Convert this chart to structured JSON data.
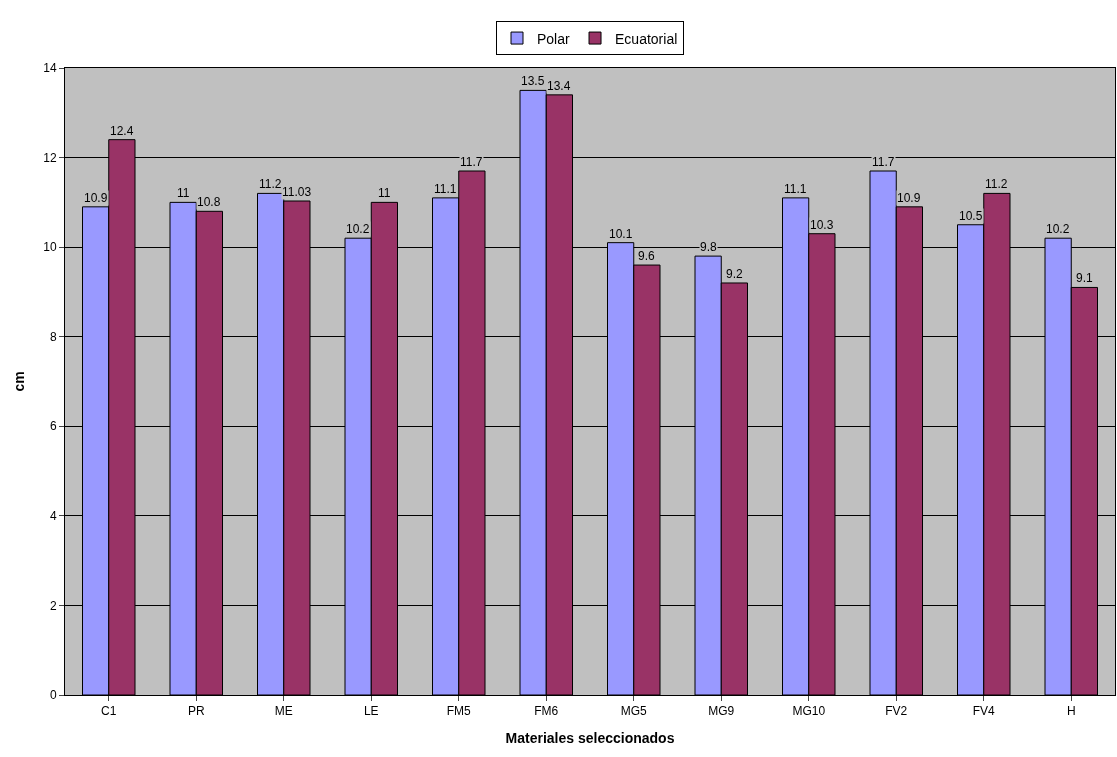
{
  "chart_data": {
    "type": "bar",
    "xlabel": "Materiales seleccionados",
    "ylabel": "cm",
    "categories": [
      "C1",
      "PR",
      "ME",
      "LE",
      "FM5",
      "FM6",
      "MG5",
      "MG9",
      "MG10",
      "FV2",
      "FV4",
      "H"
    ],
    "series": [
      {
        "name": "Polar",
        "color": "#9999ff",
        "values": [
          10.9,
          11,
          11.2,
          10.2,
          11.1,
          13.5,
          10.1,
          9.8,
          11.1,
          11.7,
          10.5,
          10.2
        ]
      },
      {
        "name": "Ecuatorial",
        "color": "#993366",
        "values": [
          12.4,
          10.8,
          11.03,
          11,
          11.7,
          13.4,
          9.6,
          9.2,
          10.3,
          10.9,
          11.2,
          9.1
        ]
      }
    ],
    "ylim": [
      0,
      14
    ],
    "yticks": [
      0,
      2,
      4,
      6,
      8,
      10,
      12,
      14
    ],
    "grid": "y",
    "legend": "top",
    "data_labels": true
  }
}
